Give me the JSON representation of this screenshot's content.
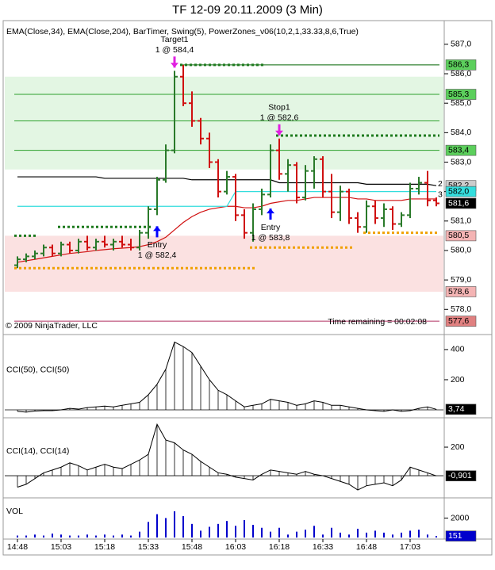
{
  "chart_data": [
    {
      "type": "ohlc",
      "title": "TF 12-09  20.11.2009 (3 Min)",
      "subtitle": "EMA(Close,34), EMA(Close,204), BarTimer, Swing(5), PowerZones_v06(10,2,1,33.33,8,6,True)",
      "copyright": "© 2009 NinjaTrader, LLC",
      "timer": "Time remaining = 00:02:08",
      "ylim": [
        577.2,
        587.75
      ],
      "yticks": [
        {
          "value": 587,
          "label": "587,0"
        },
        {
          "value": 586,
          "label": "586,0"
        },
        {
          "value": 585,
          "label": "585,0"
        },
        {
          "value": 584,
          "label": "584,0"
        },
        {
          "value": 583,
          "label": "583,0"
        },
        {
          "value": 582,
          "label": "582,0"
        },
        {
          "value": 581,
          "label": "581,0"
        },
        {
          "value": 580,
          "label": "580,0"
        },
        {
          "value": 579,
          "label": "579,0"
        },
        {
          "value": 578,
          "label": "578,0"
        }
      ],
      "up_color": "#2a7a2a",
      "down_color": "#d01010",
      "open": [
        579.5,
        579.7,
        579.8,
        579.9,
        580.1,
        579.9,
        580.2,
        580.0,
        580.3,
        580.1,
        580.3,
        580.2,
        580.3,
        580.2,
        580.1,
        580.6,
        581.4,
        582.4,
        583.4,
        585.9,
        585.0,
        584.4,
        583.8,
        583.0,
        582.0,
        582.5,
        581.2,
        580.6,
        581.4,
        581.9,
        583.4,
        582.6,
        582.9,
        581.8,
        582.7,
        583.1,
        582.0,
        581.3,
        582.0,
        581.1,
        580.8,
        581.5,
        581.1,
        581.4,
        580.9,
        581.2,
        582.1,
        582.3,
        581.7
      ],
      "high": [
        579.8,
        579.9,
        580.0,
        580.2,
        580.2,
        580.3,
        580.3,
        580.4,
        580.5,
        580.4,
        580.5,
        580.4,
        580.5,
        580.4,
        580.7,
        581.5,
        582.5,
        583.6,
        586.1,
        586.3,
        585.4,
        584.5,
        584.0,
        583.1,
        582.7,
        582.6,
        581.4,
        581.6,
        582.1,
        583.6,
        583.8,
        583.1,
        583.0,
        582.9,
        583.2,
        583.2,
        582.6,
        582.2,
        582.1,
        581.3,
        581.7,
        581.7,
        581.6,
        581.5,
        581.3,
        582.3,
        582.5,
        582.7,
        581.8
      ],
      "low": [
        579.4,
        579.6,
        579.7,
        579.8,
        579.8,
        579.8,
        579.9,
        579.9,
        580.0,
        580.0,
        580.1,
        580.0,
        580.1,
        580.0,
        580.0,
        580.4,
        581.2,
        582.3,
        583.3,
        584.9,
        584.2,
        583.6,
        582.8,
        581.8,
        581.9,
        581.0,
        580.4,
        580.3,
        581.2,
        581.8,
        582.4,
        582.0,
        581.6,
        581.7,
        582.1,
        581.8,
        581.1,
        581.0,
        580.9,
        580.6,
        580.6,
        580.9,
        580.8,
        580.7,
        580.8,
        581.1,
        581.9,
        581.5,
        581.5
      ],
      "close": [
        579.7,
        579.8,
        579.9,
        580.1,
        579.9,
        580.2,
        580.0,
        580.3,
        580.1,
        580.3,
        580.2,
        580.3,
        580.2,
        580.1,
        580.6,
        581.4,
        582.4,
        583.4,
        585.9,
        585.0,
        584.4,
        583.8,
        583.0,
        582.0,
        582.5,
        581.2,
        580.6,
        581.4,
        581.9,
        583.4,
        582.6,
        582.9,
        581.8,
        582.7,
        583.1,
        582.0,
        581.3,
        582.0,
        581.1,
        580.8,
        581.5,
        581.1,
        581.4,
        580.9,
        581.2,
        582.1,
        582.3,
        581.7,
        581.6
      ],
      "last_value_label": "581,6",
      "overlays": [
        {
          "color": "#d01010",
          "values": [
            579.6,
            579.65,
            579.7,
            579.75,
            579.8,
            579.85,
            579.9,
            579.93,
            579.96,
            580.0,
            580.03,
            580.06,
            580.08,
            580.1,
            580.13,
            580.2,
            580.3,
            580.45,
            580.7,
            580.95,
            581.15,
            581.3,
            581.4,
            581.45,
            581.5,
            581.5,
            581.45,
            581.45,
            581.5,
            581.6,
            581.65,
            581.7,
            581.7,
            581.75,
            581.8,
            581.8,
            581.8,
            581.8,
            581.8,
            581.75,
            581.75,
            581.7,
            581.7,
            581.7,
            581.7,
            581.75,
            581.75,
            581.75,
            581.75
          ]
        },
        {
          "color": "#000000",
          "values": [
            582.5,
            582.5,
            582.5,
            582.5,
            582.5,
            582.5,
            582.5,
            582.5,
            582.5,
            582.5,
            582.45,
            582.45,
            582.45,
            582.45,
            582.45,
            582.45,
            582.45,
            582.45,
            582.45,
            582.45,
            582.4,
            582.4,
            582.4,
            582.4,
            582.4,
            582.4,
            582.4,
            582.4,
            582.4,
            582.4,
            582.3,
            582.3,
            582.3,
            582.3,
            582.3,
            582.3,
            582.3,
            582.3,
            582.3,
            582.3,
            582.25,
            582.25,
            582.25,
            582.25,
            582.25,
            582.25,
            582.25,
            582.25,
            582.2
          ]
        },
        {
          "color": "#33dddd",
          "values": [
            581.5,
            581.5,
            581.5,
            581.5,
            581.5,
            581.5,
            581.5,
            581.5,
            581.5,
            581.5,
            581.5,
            581.5,
            581.5,
            581.5,
            581.5,
            581.5,
            581.5,
            581.5,
            581.5,
            581.5,
            581.5,
            581.5,
            581.5,
            581.5,
            581.5,
            582.0,
            582.0,
            582.0,
            582.0,
            582.0,
            582.0,
            582.0,
            582.0,
            582.0,
            582.0,
            582.0,
            582.0,
            582.0,
            582.0,
            582.0,
            582.0,
            582.0,
            582.0,
            582.0,
            582.0,
            582.0,
            582.0,
            582.0,
            582.0
          ]
        }
      ],
      "zones": [
        {
          "lower": 582.75,
          "upper": 585.9,
          "color": "#e3f6e3"
        },
        {
          "lower": 578.6,
          "upper": 580.5,
          "color": "#fbe1e1"
        }
      ],
      "levels": [
        {
          "value": 586.3,
          "from_bar": 19,
          "to_bar": 48,
          "color": "#006400",
          "style": "solid"
        },
        {
          "value": 585.3,
          "from_bar": 0,
          "to_bar": 48,
          "color": "#2ca02c",
          "style": "solid"
        },
        {
          "value": 584.4,
          "from_bar": 0,
          "to_bar": 48,
          "color": "#2ca02c",
          "style": "solid"
        },
        {
          "value": 583.4,
          "from_bar": 0,
          "to_bar": 48,
          "color": "#2ca02c",
          "style": "solid"
        },
        {
          "value": 577.6,
          "from_bar": 0,
          "to_bar": 48,
          "color": "#b03060",
          "style": "solid"
        },
        {
          "value": 580.5,
          "from_bar": 0,
          "to_bar": 2,
          "color": "#1e7a1e",
          "style": "dotted"
        },
        {
          "value": 580.8,
          "from_bar": 5,
          "to_bar": 15,
          "color": "#1e7a1e",
          "style": "dotted"
        },
        {
          "value": 586.3,
          "from_bar": 19,
          "to_bar": 28,
          "color": "#1e7a1e",
          "style": "dotted"
        },
        {
          "value": 583.9,
          "from_bar": 30,
          "to_bar": 48,
          "color": "#1e7a1e",
          "style": "dotted"
        },
        {
          "value": 579.4,
          "from_bar": 0,
          "to_bar": 27,
          "color": "#f0a000",
          "style": "dotted"
        },
        {
          "value": 580.1,
          "from_bar": 27,
          "to_bar": 38,
          "color": "#f0a000",
          "style": "dotted"
        },
        {
          "value": 580.6,
          "from_bar": 40,
          "to_bar": 48,
          "color": "#f0a000",
          "style": "dotted"
        }
      ],
      "price_tags": [
        {
          "value": 586.3,
          "label": "586,3",
          "color": "#5ccf5c"
        },
        {
          "value": 585.3,
          "label": "585,3",
          "color": "#5ccf5c"
        },
        {
          "value": 583.4,
          "label": "583,4",
          "color": "#5ccf5c"
        },
        {
          "value": 582.2,
          "label": "582,2",
          "color": "#cccccc"
        },
        {
          "value": 582.0,
          "label": "582,0",
          "color": "#33dddd"
        },
        {
          "value": 580.5,
          "label": "580,5",
          "color": "#f4b4b4"
        },
        {
          "value": 578.6,
          "label": "578,6",
          "color": "#f4b4b4"
        },
        {
          "value": 577.6,
          "label": "577,6",
          "color": "#e08080"
        }
      ],
      "swing_labels": [
        "2",
        "3"
      ],
      "annotations": [
        {
          "bar": 18,
          "position": "above",
          "color": "#e020e0",
          "text": [
            "Target1",
            "1 @ 584,4"
          ]
        },
        {
          "bar": 30,
          "position": "above",
          "color": "#e020e0",
          "text": [
            "Stop1",
            "1 @ 582,6"
          ]
        },
        {
          "bar": 29,
          "position": "below",
          "color": "#0000ff",
          "text": [
            "Entry",
            "1 @ 583,8"
          ]
        },
        {
          "bar": 16,
          "position": "below",
          "color": "#0000ff",
          "text": [
            "Entry",
            "1 @ 582,4"
          ]
        }
      ]
    },
    {
      "type": "cci",
      "label": "CCI(50), CCI(50)",
      "ylim": [
        -42,
        489
      ],
      "yticks": [
        200,
        400
      ],
      "values": [
        -10,
        -15,
        -8,
        -5,
        -5,
        0,
        10,
        5,
        15,
        20,
        25,
        20,
        30,
        40,
        50,
        100,
        170,
        270,
        450,
        420,
        380,
        290,
        200,
        130,
        100,
        60,
        20,
        30,
        40,
        70,
        60,
        50,
        30,
        40,
        60,
        50,
        30,
        30,
        20,
        10,
        0,
        -5,
        -10,
        0,
        -10,
        -5,
        10,
        20,
        3.74
      ],
      "last_value_label": "3,74"
    },
    {
      "type": "cci",
      "label": "CCI(14), CCI(14)",
      "ylim": [
        -144,
        400
      ],
      "yticks": [
        200
      ],
      "values": [
        -80,
        -60,
        -20,
        20,
        40,
        60,
        90,
        70,
        40,
        60,
        80,
        60,
        50,
        80,
        110,
        150,
        360,
        250,
        230,
        180,
        150,
        100,
        60,
        20,
        10,
        -10,
        -20,
        -30,
        10,
        40,
        30,
        20,
        10,
        30,
        10,
        0,
        -20,
        -40,
        -60,
        -100,
        -70,
        -60,
        -50,
        -70,
        -30,
        60,
        40,
        20,
        -0.901
      ],
      "last_value_label": "-0,901"
    },
    {
      "type": "bar",
      "label": "VOL",
      "ylim": [
        0,
        4000
      ],
      "yticks": [
        2000
      ],
      "color": "#0000cc",
      "values": [
        200,
        200,
        300,
        200,
        400,
        300,
        200,
        200,
        300,
        200,
        300,
        200,
        300,
        200,
        600,
        1600,
        2400,
        2000,
        2700,
        2200,
        1400,
        700,
        1100,
        1400,
        1700,
        1200,
        1800,
        1300,
        1000,
        600,
        1000,
        300,
        600,
        800,
        1200,
        300,
        1000,
        500,
        300,
        900,
        500,
        700,
        500,
        300,
        500,
        700,
        800,
        300,
        151
      ],
      "categories": [
        "14:48",
        null,
        null,
        null,
        null,
        "15:03",
        null,
        null,
        null,
        null,
        "15:18",
        null,
        null,
        null,
        null,
        "15:33",
        null,
        null,
        null,
        null,
        "15:48",
        null,
        null,
        null,
        null,
        "16:03",
        null,
        null,
        null,
        null,
        "16:18",
        null,
        null,
        null,
        null,
        "16:33",
        null,
        null,
        null,
        null,
        "16:48",
        null,
        null,
        null,
        null,
        "17:03",
        null,
        null,
        null
      ]
    }
  ]
}
